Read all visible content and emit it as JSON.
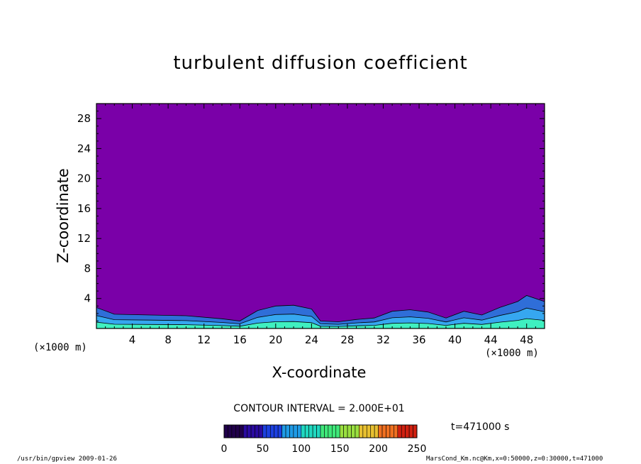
{
  "chart_data": {
    "type": "heatmap",
    "title": "turbulent diffusion coefficient",
    "xlabel": "X-coordinate",
    "ylabel": "Z-coordinate",
    "x_unit": "(×1000 m)",
    "xlim": [
      0,
      50
    ],
    "ylim": [
      0,
      30
    ],
    "x_ticks": [
      4,
      8,
      12,
      16,
      20,
      24,
      28,
      32,
      36,
      40,
      44,
      48
    ],
    "y_ticks": [
      4,
      8,
      12,
      16,
      20,
      24,
      28
    ],
    "contour_interval": "CONTOUR INTERVAL = 2.000E+01",
    "time_label": "t=471000 s",
    "colorbar": {
      "min": 0,
      "max": 250,
      "tick_labels": [
        0,
        50,
        100,
        150,
        200,
        250
      ]
    },
    "background_value": 0,
    "boundary_layer": [
      {
        "x": 0,
        "top": 2.8
      },
      {
        "x": 2,
        "top": 1.9
      },
      {
        "x": 6,
        "top": 1.8
      },
      {
        "x": 10,
        "top": 1.7
      },
      {
        "x": 14,
        "top": 1.3
      },
      {
        "x": 16,
        "top": 1.0
      },
      {
        "x": 18,
        "top": 2.4
      },
      {
        "x": 20,
        "top": 3.0
      },
      {
        "x": 22,
        "top": 3.1
      },
      {
        "x": 24,
        "top": 2.6
      },
      {
        "x": 25,
        "top": 1.0
      },
      {
        "x": 27,
        "top": 0.9
      },
      {
        "x": 29,
        "top": 1.2
      },
      {
        "x": 31,
        "top": 1.4
      },
      {
        "x": 33,
        "top": 2.3
      },
      {
        "x": 35,
        "top": 2.5
      },
      {
        "x": 37,
        "top": 2.2
      },
      {
        "x": 39,
        "top": 1.4
      },
      {
        "x": 41,
        "top": 2.3
      },
      {
        "x": 43,
        "top": 1.8
      },
      {
        "x": 45,
        "top": 2.8
      },
      {
        "x": 47,
        "top": 3.6
      },
      {
        "x": 48,
        "top": 4.4
      },
      {
        "x": 50,
        "top": 3.6
      }
    ]
  },
  "colors": {
    "background_fill": "#7a00a8",
    "low_turbulence": "#2f6ed8",
    "medium_turbulence": "#36a7f0",
    "high_turbulence": "#3ff0c0",
    "contour_line": "#000000"
  },
  "footer": {
    "left": "/usr/bin/gpview  2009-01-26",
    "right": "MarsCond_Km.nc@Km,x=0:50000,z=0:30000,t=471000"
  }
}
